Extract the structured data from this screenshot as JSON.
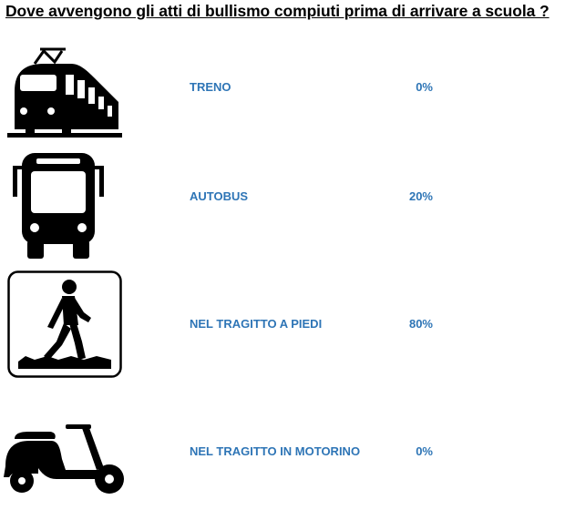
{
  "title": "Dove avvengono gli atti di bullismo compiuti prima di arrivare a scuola ?",
  "accent_color": "#2e75b6",
  "items": [
    {
      "icon": "train-icon",
      "label": "TRENO",
      "value": "0%",
      "percent": 0
    },
    {
      "icon": "bus-icon",
      "label": "AUTOBUS",
      "value": "20%",
      "percent": 20
    },
    {
      "icon": "pedestrian-icon",
      "label": "NEL TRAGITTO A PIEDI",
      "value": "80%",
      "percent": 80
    },
    {
      "icon": "scooter-icon",
      "label": "NEL TRAGITTO IN MOTORINO",
      "value": "0%",
      "percent": 0
    }
  ]
}
